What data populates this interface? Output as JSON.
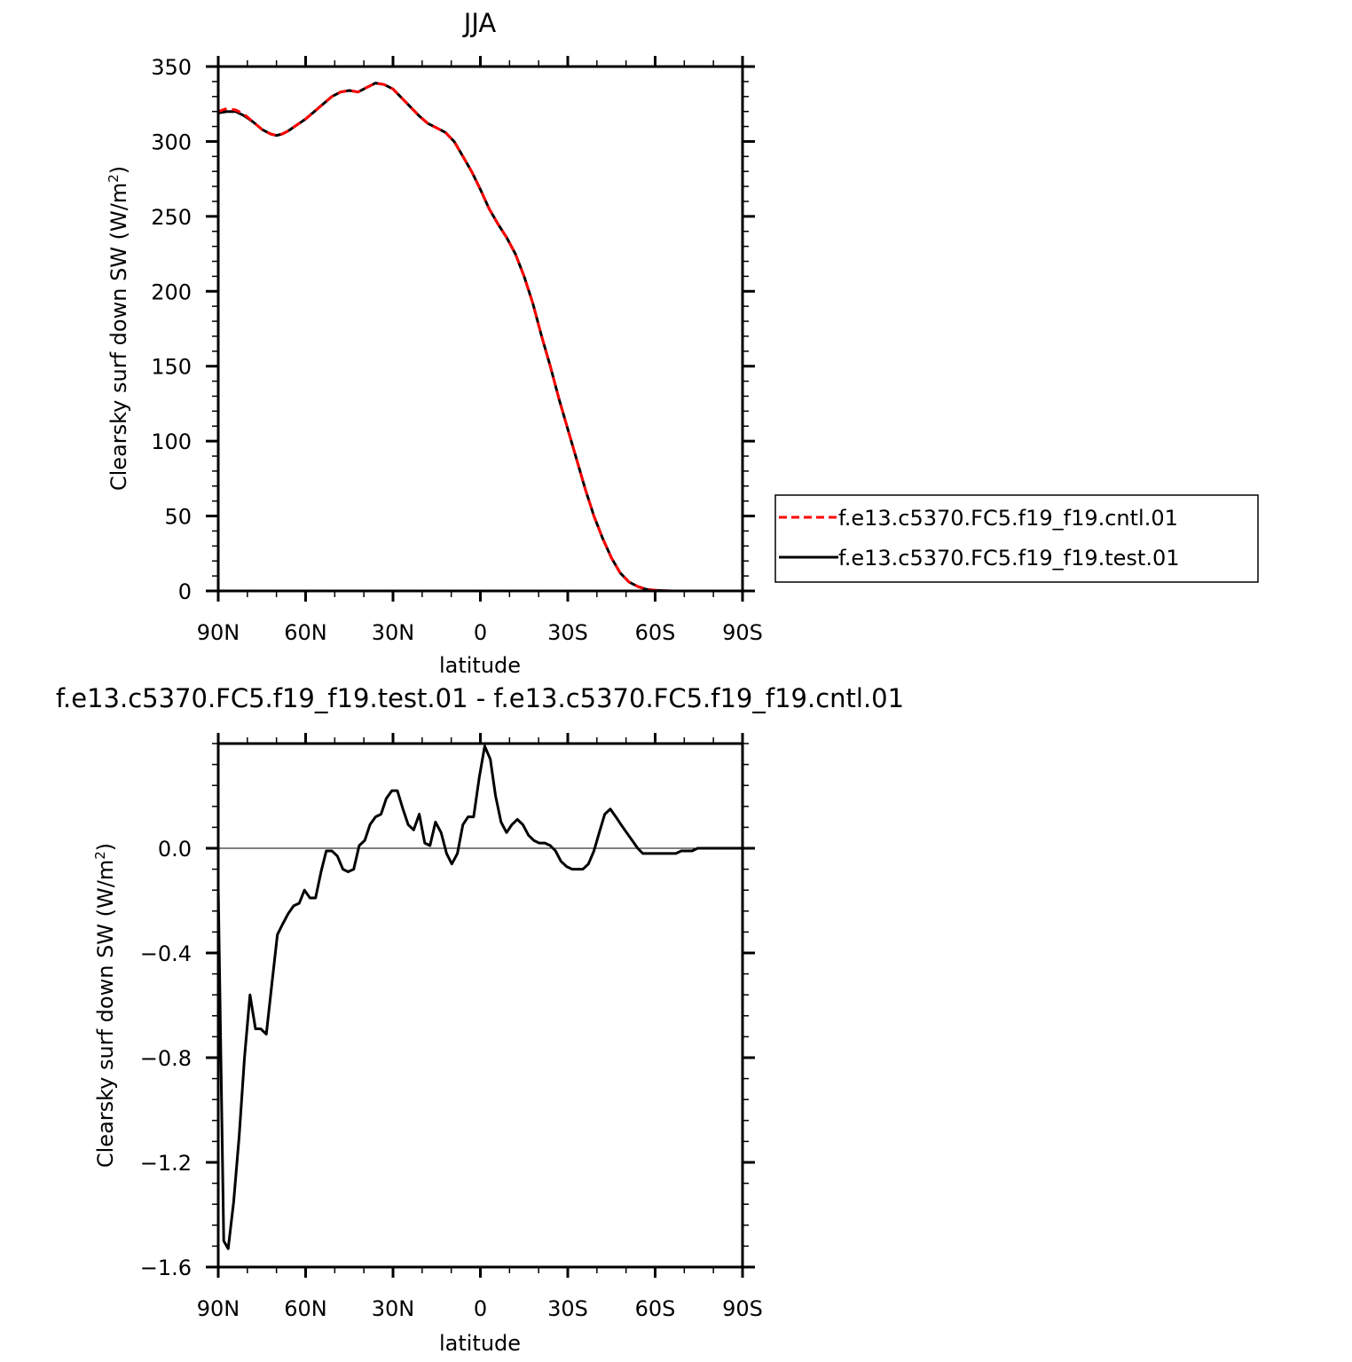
{
  "chart_data": [
    {
      "type": "line",
      "title": "JJA",
      "xlabel": "latitude",
      "ylabel": "Clearsky surf down SW (W/m²)",
      "ylabel_main": "Clearsky surf down SW (W/m",
      "ylabel_sup": "2",
      "ylabel_close": ")",
      "xlim": [
        90,
        -90
      ],
      "ylim": [
        0,
        350
      ],
      "x_ticks": [
        90,
        60,
        30,
        0,
        -30,
        -60,
        -90
      ],
      "x_tick_labels": [
        "90N",
        "60N",
        "30N",
        "0",
        "30S",
        "60S",
        "90S"
      ],
      "y_ticks": [
        0,
        50,
        100,
        150,
        200,
        250,
        300,
        350
      ],
      "y_tick_labels": [
        "0",
        "50",
        "100",
        "150",
        "200",
        "250",
        "300",
        "350"
      ],
      "legend_position": "right",
      "series": [
        {
          "name": "f.e13.c5370.FC5.f19_f19.cntl.01",
          "color": "#ff0000",
          "dash": "dashed",
          "x": [
            90,
            87,
            84,
            81,
            78,
            75,
            72,
            70,
            68,
            66,
            63,
            60,
            57,
            54,
            51,
            48,
            45,
            42,
            39,
            36,
            33,
            30,
            27,
            24,
            21,
            18,
            15,
            12,
            9,
            6,
            3,
            0,
            -3,
            -6,
            -9,
            -12,
            -15,
            -18,
            -21,
            -24,
            -27,
            -30,
            -33,
            -36,
            -39,
            -42,
            -45,
            -48,
            -51,
            -54,
            -57,
            -60,
            -63,
            -66,
            -69,
            -72,
            -75,
            -78,
            -81,
            -84,
            -87,
            -90
          ],
          "y": [
            320,
            322,
            321,
            318,
            313,
            308,
            305,
            304,
            305,
            307,
            311,
            315,
            320,
            325,
            330,
            333,
            334,
            333,
            336,
            339,
            338,
            335,
            329,
            323,
            317,
            312,
            309,
            306,
            300,
            290,
            280,
            268,
            255,
            245,
            236,
            225,
            210,
            192,
            170,
            150,
            128,
            108,
            88,
            68,
            50,
            35,
            22,
            12,
            6,
            3,
            1,
            0.5,
            0.2,
            0,
            0,
            0,
            0,
            0,
            0,
            0,
            0,
            0
          ]
        },
        {
          "name": "f.e13.c5370.FC5.f19_f19.test.01",
          "color": "#000000",
          "dash": "solid",
          "x": [
            90,
            87,
            84,
            81,
            78,
            75,
            72,
            70,
            68,
            66,
            63,
            60,
            57,
            54,
            51,
            48,
            45,
            42,
            39,
            36,
            33,
            30,
            27,
            24,
            21,
            18,
            15,
            12,
            9,
            6,
            3,
            0,
            -3,
            -6,
            -9,
            -12,
            -15,
            -18,
            -21,
            -24,
            -27,
            -30,
            -33,
            -36,
            -39,
            -42,
            -45,
            -48,
            -51,
            -54,
            -57,
            -60,
            -63,
            -66,
            -69,
            -72,
            -75,
            -78,
            -81,
            -84,
            -87,
            -90
          ],
          "y": [
            319,
            320,
            320,
            317,
            313,
            308,
            305,
            304,
            305,
            307,
            311,
            315,
            320,
            325,
            330,
            333,
            334,
            333,
            336,
            339,
            338,
            335,
            329,
            323,
            317,
            312,
            309,
            306,
            300,
            290,
            280,
            268,
            255,
            245,
            236,
            225,
            210,
            192,
            170,
            150,
            128,
            108,
            88,
            68,
            50,
            35,
            22,
            12,
            6,
            3,
            1,
            0.5,
            0.2,
            0,
            0,
            0,
            0,
            0,
            0,
            0,
            0,
            0
          ]
        }
      ]
    },
    {
      "type": "line",
      "title": "f.e13.c5370.FC5.f19_f19.test.01 - f.e13.c5370.FC5.f19_f19.cntl.01",
      "xlabel": "latitude",
      "ylabel": "Clearsky surf down SW (W/m²)",
      "ylabel_main": "Clearsky surf down SW (W/m",
      "ylabel_sup": "2",
      "ylabel_close": ")",
      "xlim": [
        90,
        -90
      ],
      "ylim": [
        -1.6,
        0.4
      ],
      "x_ticks": [
        90,
        60,
        30,
        0,
        -30,
        -60,
        -90
      ],
      "x_tick_labels": [
        "90N",
        "60N",
        "30N",
        "0",
        "30S",
        "60S",
        "90S"
      ],
      "y_ticks": [
        -1.6,
        -1.2,
        -0.8,
        -0.4,
        0.0
      ],
      "y_tick_labels": [
        "−1.6",
        "−1.2",
        "−0.8",
        "−0.4",
        "0.0"
      ],
      "series": [
        {
          "color": "#000000",
          "dash": "solid",
          "x": [
            90,
            88.1,
            86.6,
            84.7,
            82.8,
            81.0,
            79.1,
            77.2,
            75.4,
            73.5,
            71.6,
            69.7,
            67.9,
            66.0,
            64.1,
            62.2,
            60.4,
            58.5,
            56.6,
            54.7,
            52.9,
            51.0,
            49.1,
            47.2,
            45.4,
            43.5,
            41.6,
            39.7,
            37.9,
            36.0,
            34.1,
            32.3,
            30.4,
            28.5,
            26.6,
            24.8,
            22.9,
            21.0,
            19.1,
            17.3,
            15.4,
            13.5,
            11.6,
            9.8,
            7.9,
            6.0,
            4.2,
            2.3,
            0.4,
            -1.5,
            -3.4,
            -5.2,
            -7.1,
            -9.0,
            -10.8,
            -12.7,
            -14.6,
            -16.5,
            -18.3,
            -20.2,
            -22.1,
            -24.0,
            -25.8,
            -27.7,
            -29.6,
            -31.5,
            -33.3,
            -35.2,
            -37.1,
            -39.0,
            -40.8,
            -42.7,
            -44.6,
            -46.5,
            -48.3,
            -50.2,
            -52.1,
            -54.0,
            -55.8,
            -57.7,
            -59.6,
            -61.5,
            -63.3,
            -65.2,
            -67.1,
            -69.0,
            -70.8,
            -72.7,
            -74.6,
            -76.5,
            -78.3,
            -80.2,
            -82.1,
            -84.0,
            -85.8,
            -87.7,
            -90
          ],
          "y": [
            -0.15,
            -1.5,
            -1.53,
            -1.35,
            -1.1,
            -0.8,
            -0.56,
            -0.69,
            -0.69,
            -0.71,
            -0.52,
            -0.33,
            -0.29,
            -0.25,
            -0.22,
            -0.21,
            -0.16,
            -0.19,
            -0.19,
            -0.09,
            -0.01,
            -0.01,
            -0.03,
            -0.08,
            -0.09,
            -0.08,
            0.01,
            0.03,
            0.09,
            0.12,
            0.13,
            0.19,
            0.22,
            0.22,
            0.15,
            0.09,
            0.07,
            0.13,
            0.02,
            0.01,
            0.1,
            0.06,
            -0.02,
            -0.06,
            -0.02,
            0.09,
            0.12,
            0.12,
            0.27,
            0.39,
            0.34,
            0.2,
            0.1,
            0.06,
            0.09,
            0.11,
            0.09,
            0.05,
            0.03,
            0.02,
            0.02,
            0.01,
            -0.01,
            -0.05,
            -0.07,
            -0.08,
            -0.08,
            -0.08,
            -0.06,
            -0.01,
            0.06,
            0.13,
            0.15,
            0.12,
            0.09,
            0.06,
            0.03,
            0.0,
            -0.02,
            -0.02,
            -0.02,
            -0.02,
            -0.02,
            -0.02,
            -0.02,
            -0.01,
            -0.01,
            -0.01,
            -0.0,
            -0.0,
            0.0,
            0.0,
            0.0,
            0.0,
            0.0,
            0.0,
            0.0
          ]
        }
      ]
    }
  ]
}
